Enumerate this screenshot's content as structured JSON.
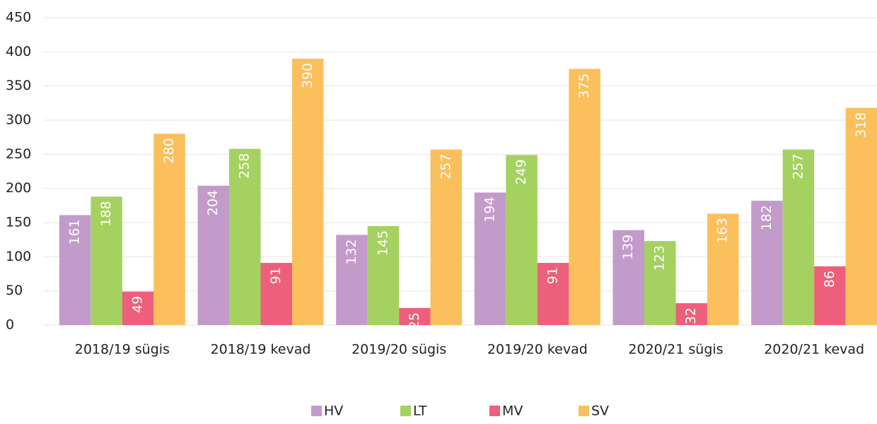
{
  "chart_data": {
    "type": "bar",
    "categories": [
      "2018/19 sügis",
      "2018/19 kevad",
      "2019/20 sügis",
      "2019/20 kevad",
      "2020/21 sügis",
      "2020/21 kevad"
    ],
    "series": [
      {
        "name": "HV",
        "color": "#c39bcb",
        "values": [
          161,
          204,
          132,
          194,
          139,
          182
        ]
      },
      {
        "name": "LT",
        "color": "#a5d160",
        "values": [
          188,
          258,
          145,
          249,
          123,
          257
        ]
      },
      {
        "name": "MV",
        "color": "#ed5f7b",
        "values": [
          49,
          91,
          25,
          91,
          32,
          86
        ]
      },
      {
        "name": "SV",
        "color": "#fbbf5c",
        "values": [
          280,
          390,
          257,
          375,
          163,
          318
        ]
      }
    ],
    "ylim": [
      0,
      450
    ],
    "yticks": [
      0,
      50,
      100,
      150,
      200,
      250,
      300,
      350,
      400,
      450
    ],
    "grid": true,
    "legend": "bottom"
  }
}
